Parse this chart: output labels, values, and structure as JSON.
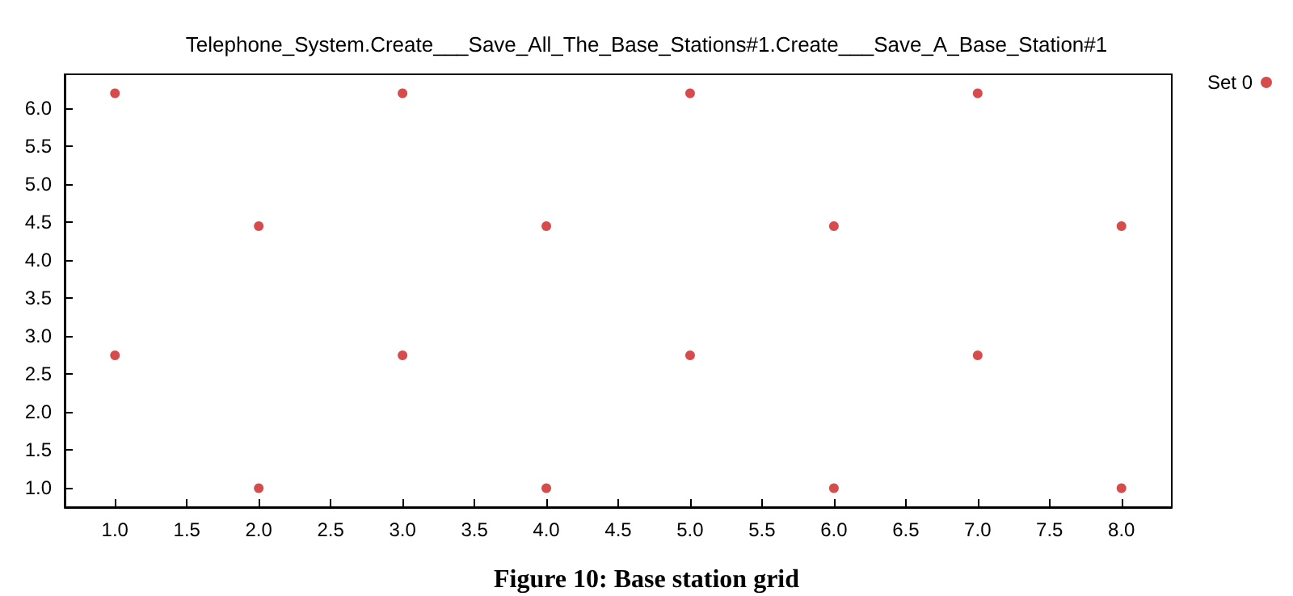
{
  "chart_data": {
    "type": "scatter",
    "title": "Telephone_System.Create___Save_All_The_Base_Stations#1.Create___Save_A_Base_Station#1",
    "annotations": [
      "Figure 10: Base station grid"
    ],
    "x": [
      1,
      3,
      5,
      7,
      2,
      4,
      6,
      8,
      1,
      3,
      5,
      7,
      2,
      4,
      6,
      8
    ],
    "series": [
      {
        "name": "Set 0",
        "color": "#cc1f1f",
        "values": [
          6.2,
          6.2,
          6.2,
          6.2,
          4.45,
          4.45,
          4.45,
          4.45,
          2.75,
          2.75,
          2.75,
          2.75,
          1.0,
          1.0,
          1.0,
          1.0
        ]
      }
    ],
    "xlim": [
      0.65,
      8.35
    ],
    "xticks": [
      {
        "value": 1,
        "label": "1.0"
      },
      {
        "value": 1.5,
        "label": "1.5"
      },
      {
        "value": 2,
        "label": "2.0"
      },
      {
        "value": 2.5,
        "label": "2.5"
      },
      {
        "value": 3,
        "label": "3.0"
      },
      {
        "value": 3.5,
        "label": "3.5"
      },
      {
        "value": 4,
        "label": "4.0"
      },
      {
        "value": 4.5,
        "label": "4.5"
      },
      {
        "value": 5,
        "label": "5.0"
      },
      {
        "value": 5.5,
        "label": "5.5"
      },
      {
        "value": 6,
        "label": "6.0"
      },
      {
        "value": 6.5,
        "label": "6.5"
      },
      {
        "value": 7,
        "label": "7.0"
      },
      {
        "value": 7.5,
        "label": "7.5"
      },
      {
        "value": 8,
        "label": "8.0"
      }
    ],
    "ylim": [
      0.75,
      6.45
    ],
    "yticks": [
      {
        "value": 1,
        "label": "1.0"
      },
      {
        "value": 1.5,
        "label": "1.5"
      },
      {
        "value": 2,
        "label": "2.0"
      },
      {
        "value": 2.5,
        "label": "2.5"
      },
      {
        "value": 3,
        "label": "3.0"
      },
      {
        "value": 3.5,
        "label": "3.5"
      },
      {
        "value": 4,
        "label": "4.0"
      },
      {
        "value": 4.5,
        "label": "4.5"
      },
      {
        "value": 5,
        "label": "5.0"
      },
      {
        "value": 5.5,
        "label": "5.5"
      },
      {
        "value": 6,
        "label": "6.0"
      }
    ],
    "grid": false,
    "legend": "top right",
    "marker": "circle"
  }
}
